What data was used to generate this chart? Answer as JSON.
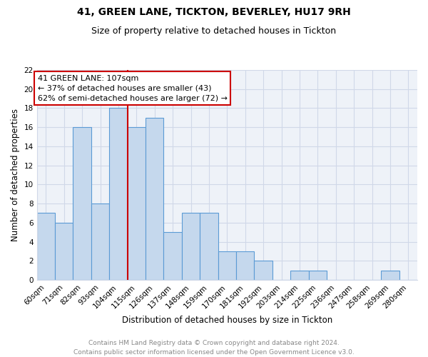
{
  "title": "41, GREEN LANE, TICKTON, BEVERLEY, HU17 9RH",
  "subtitle": "Size of property relative to detached houses in Tickton",
  "xlabel": "Distribution of detached houses by size in Tickton",
  "ylabel": "Number of detached properties",
  "categories": [
    "60sqm",
    "71sqm",
    "82sqm",
    "93sqm",
    "104sqm",
    "115sqm",
    "126sqm",
    "137sqm",
    "148sqm",
    "159sqm",
    "170sqm",
    "181sqm",
    "192sqm",
    "203sqm",
    "214sqm",
    "225sqm",
    "236sqm",
    "247sqm",
    "258sqm",
    "269sqm",
    "280sqm"
  ],
  "values": [
    7,
    6,
    16,
    8,
    18,
    16,
    17,
    5,
    7,
    7,
    3,
    3,
    2,
    0,
    1,
    1,
    0,
    0,
    0,
    1,
    0
  ],
  "bar_color": "#c5d8ed",
  "bar_edge_color": "#5b9bd5",
  "vline_x": 4.5,
  "marker_label": "41 GREEN LANE: 107sqm",
  "annotation_line1": "← 37% of detached houses are smaller (43)",
  "annotation_line2": "62% of semi-detached houses are larger (72) →",
  "annotation_box_color": "#ffffff",
  "annotation_box_edge": "#cc0000",
  "vline_color": "#cc0000",
  "ylim": [
    0,
    22
  ],
  "yticks": [
    0,
    2,
    4,
    6,
    8,
    10,
    12,
    14,
    16,
    18,
    20,
    22
  ],
  "grid_color": "#d0d8e8",
  "background_color": "#eef2f8",
  "footer_text": "Contains HM Land Registry data © Crown copyright and database right 2024.\nContains public sector information licensed under the Open Government Licence v3.0.",
  "title_fontsize": 10,
  "subtitle_fontsize": 9,
  "xlabel_fontsize": 8.5,
  "ylabel_fontsize": 8.5,
  "tick_fontsize": 7.5,
  "annotation_fontsize": 8,
  "footer_fontsize": 6.5
}
